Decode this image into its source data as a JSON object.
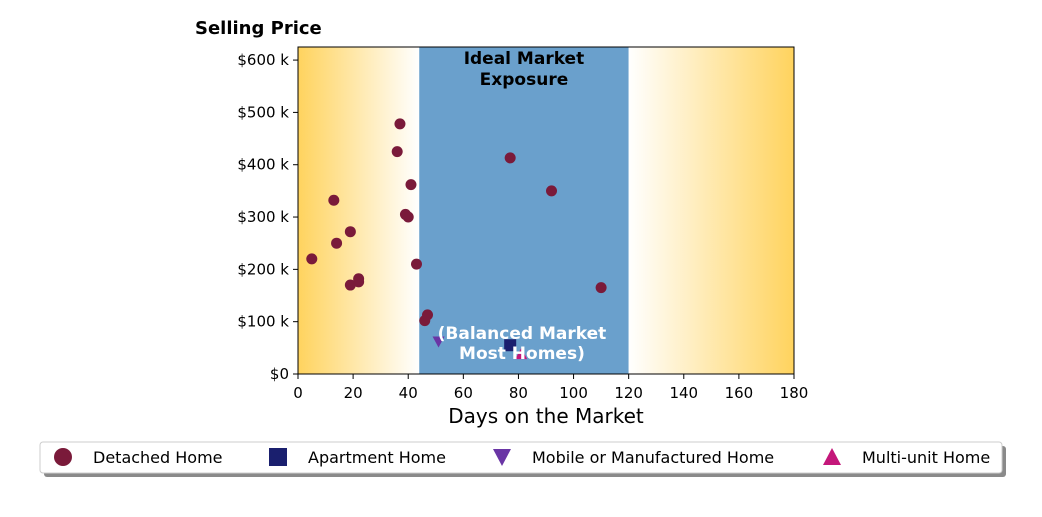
{
  "chart_data": {
    "type": "scatter",
    "title": "Selling Price",
    "xlabel": "Days on the Market",
    "ylabel": "",
    "xlim": [
      0,
      180
    ],
    "ylim": [
      0,
      625000
    ],
    "x_ticks": [
      0,
      20,
      40,
      60,
      80,
      100,
      120,
      140,
      160,
      180
    ],
    "x_tick_labels": [
      "0",
      "20",
      "40",
      "60",
      "80",
      "100",
      "120",
      "140",
      "160",
      "180"
    ],
    "y_ticks": [
      0,
      100000,
      200000,
      300000,
      400000,
      500000,
      600000
    ],
    "y_tick_labels": [
      "$0",
      "$100 k",
      "$200 k",
      "$300 k",
      "$400 k",
      "$500 k",
      "$600 k"
    ],
    "grid": false,
    "legend_position": "bottom",
    "ideal_band": {
      "x_range": [
        44,
        120
      ],
      "label_top": "Ideal Market\nExposure",
      "label_bottom": "(Balanced Market\nMost Homes)",
      "color": "#6aa0cc"
    },
    "edge_gradient_color": "#ffd35e",
    "series": [
      {
        "name": "Detached Home",
        "marker": "circle",
        "color": "#7a1a3a",
        "points": [
          {
            "x": 5,
            "y": 220000
          },
          {
            "x": 13,
            "y": 332000
          },
          {
            "x": 14,
            "y": 250000
          },
          {
            "x": 19,
            "y": 272000
          },
          {
            "x": 19,
            "y": 170000
          },
          {
            "x": 22,
            "y": 182000
          },
          {
            "x": 22,
            "y": 176000
          },
          {
            "x": 36,
            "y": 425000
          },
          {
            "x": 37,
            "y": 478000
          },
          {
            "x": 39,
            "y": 305000
          },
          {
            "x": 40,
            "y": 300000
          },
          {
            "x": 41,
            "y": 362000
          },
          {
            "x": 43,
            "y": 210000
          },
          {
            "x": 46,
            "y": 102000
          },
          {
            "x": 47,
            "y": 113000
          },
          {
            "x": 77,
            "y": 413000
          },
          {
            "x": 92,
            "y": 350000
          },
          {
            "x": 110,
            "y": 165000
          }
        ]
      },
      {
        "name": "Apartment Home",
        "marker": "square",
        "color": "#1a1f6e",
        "points": [
          {
            "x": 77,
            "y": 55000
          }
        ]
      },
      {
        "name": "Mobile or Manufactured Home",
        "marker": "triangle-down",
        "color": "#6a35a5",
        "points": [
          {
            "x": 51,
            "y": 62000
          }
        ]
      },
      {
        "name": "Multi-unit Home",
        "marker": "triangle-up",
        "color": "#c4177a",
        "points": [
          {
            "x": 81,
            "y": 38000
          }
        ]
      }
    ]
  }
}
